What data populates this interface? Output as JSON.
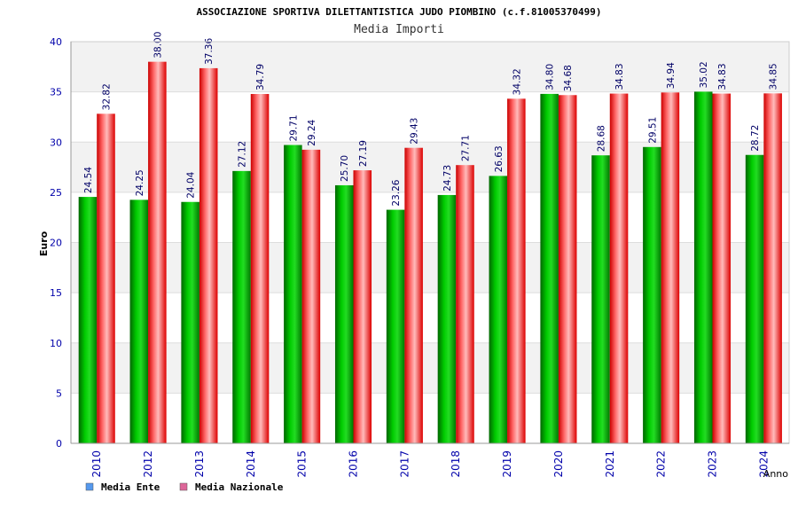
{
  "chart_data": {
    "type": "bar",
    "title": "ASSOCIAZIONE SPORTIVA DILETTANTISTICA JUDO PIOMBINO (c.f.81005370499)",
    "subtitle": "Media Importi",
    "xlabel": "Anno",
    "ylabel": "Euro",
    "ylim": [
      0,
      40
    ],
    "yticks": [
      "0",
      "5",
      "10",
      "15",
      "20",
      "25",
      "30",
      "35",
      "40"
    ],
    "grid": true,
    "legend_position": "bottom-left",
    "categories": [
      "2010",
      "2012",
      "2013",
      "2014",
      "2015",
      "2016",
      "2017",
      "2018",
      "2019",
      "2020",
      "2021",
      "2022",
      "2023",
      "2024"
    ],
    "series": [
      {
        "name": "Media Ente",
        "color": "#00aa00",
        "legend_color": "#5599ee",
        "values": [
          24.54,
          24.25,
          24.04,
          27.12,
          29.71,
          25.7,
          23.26,
          24.73,
          26.63,
          34.8,
          28.68,
          29.51,
          35.02,
          28.72
        ],
        "labels": [
          "24.54",
          "24.25",
          "24.04",
          "27.12",
          "29.71",
          "25.70",
          "23.26",
          "24.73",
          "26.63",
          "34.80",
          "28.68",
          "29.51",
          "35.02",
          "28.72"
        ]
      },
      {
        "name": "Media Nazionale",
        "color": "#ee1111",
        "legend_color": "#dd6699",
        "values": [
          32.82,
          38.0,
          37.36,
          34.79,
          29.24,
          27.19,
          29.43,
          27.71,
          34.32,
          34.68,
          34.83,
          34.94,
          34.83,
          34.85
        ],
        "labels": [
          "32.82",
          "38.00",
          "37.36",
          "34.79",
          "29.24",
          "27.19",
          "29.43",
          "27.71",
          "34.32",
          "34.68",
          "34.83",
          "34.94",
          "34.83",
          "34.85"
        ]
      }
    ]
  }
}
